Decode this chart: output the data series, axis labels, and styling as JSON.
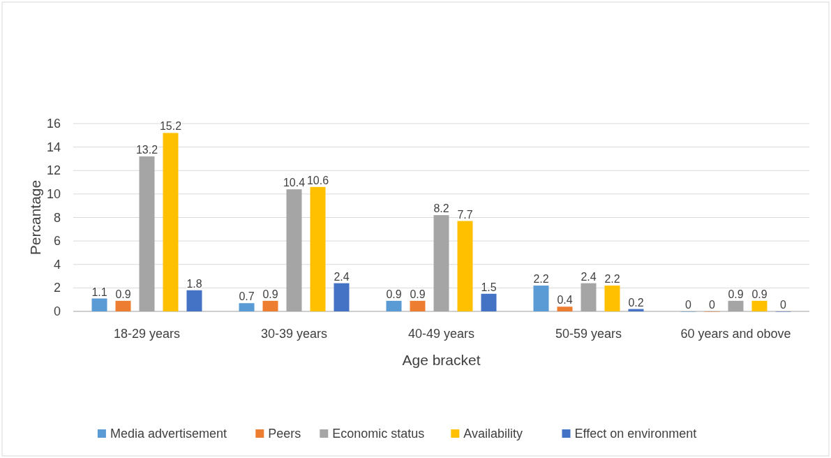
{
  "chart_data": {
    "type": "bar",
    "xlabel": "Age bracket",
    "ylabel": "Percantage",
    "categories": [
      "18-29 years",
      "30-39 years",
      "40-49 years",
      "50-59 years",
      "60 years and obove"
    ],
    "series": [
      {
        "name": "Media advertisement",
        "color": "#5b9bd5",
        "values": [
          1.1,
          0.7,
          0.9,
          2.2,
          0
        ]
      },
      {
        "name": "Peers",
        "color": "#ed7d31",
        "values": [
          0.9,
          0.9,
          0.9,
          0.4,
          0
        ]
      },
      {
        "name": "Economic status",
        "color": "#a5a5a5",
        "values": [
          13.2,
          10.4,
          8.2,
          2.4,
          0.9
        ]
      },
      {
        "name": "Availability",
        "color": "#ffc000",
        "values": [
          15.2,
          10.6,
          7.7,
          2.2,
          0.9
        ]
      },
      {
        "name": "Effect on environment",
        "color": "#4472c4",
        "values": [
          1.8,
          2.4,
          1.5,
          0.2,
          0
        ]
      }
    ],
    "ylim": [
      0,
      16
    ],
    "yticks": [
      0,
      2,
      4,
      6,
      8,
      10,
      12,
      14,
      16
    ],
    "grid": "y",
    "legend": "bottom",
    "data_labels": true
  }
}
